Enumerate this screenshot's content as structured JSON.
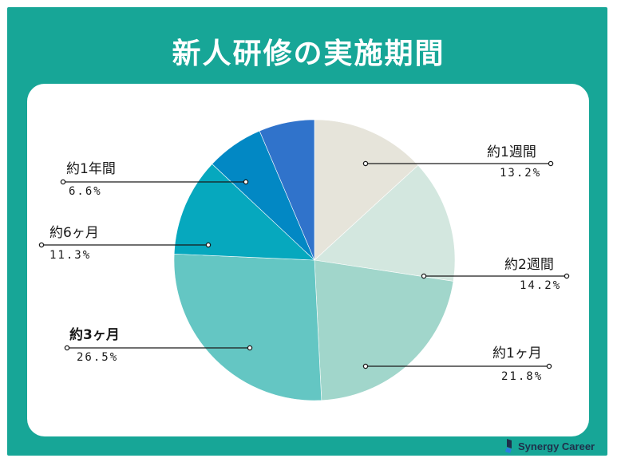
{
  "title": "新人研修の実施期間",
  "brand": {
    "name": "Synergy Career",
    "icon": "synergy-career-logo-icon",
    "color": "#1f2f4a"
  },
  "colors": {
    "background": "#17a697",
    "card": "#ffffff"
  },
  "chart_data": {
    "type": "pie",
    "title": "新人研修の実施期間",
    "start_angle_deg": 0,
    "direction": "clockwise",
    "slices": [
      {
        "label": "約1週間",
        "value": 13.2,
        "display": "13.2%",
        "color": "#e6e4da"
      },
      {
        "label": "約2週間",
        "value": 14.2,
        "display": "14.2%",
        "color": "#d3e7df"
      },
      {
        "label": "約1ヶ月",
        "value": 21.8,
        "display": "21.8%",
        "color": "#a1d6cb"
      },
      {
        "label": "約3ヶ月",
        "value": 26.5,
        "display": "26.5%",
        "color": "#64c6c3",
        "emphasis": true
      },
      {
        "label": "約6ヶ月",
        "value": 11.3,
        "display": "11.3%",
        "color": "#06a8be"
      },
      {
        "label": "約1年間",
        "value": 6.6,
        "display": "6.6%",
        "color": "#0288c4"
      },
      {
        "label": "",
        "value": 6.4,
        "display": "",
        "color": "#3073cb"
      }
    ]
  }
}
